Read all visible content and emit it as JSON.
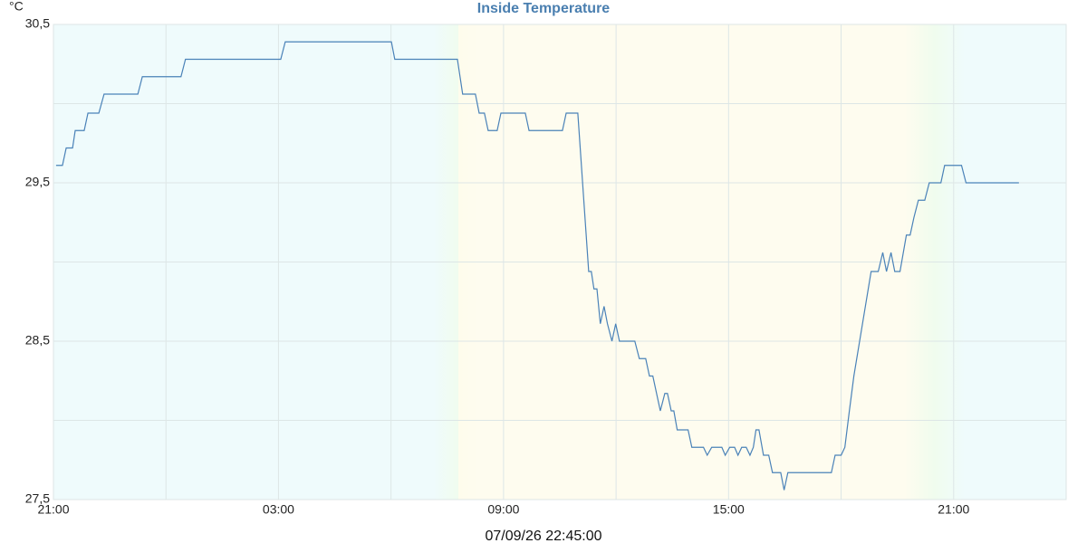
{
  "chart_data": {
    "type": "line",
    "title": "Inside Temperature",
    "y_label": "°C",
    "timestamp": "07/09/26 22:45:00",
    "color": "#4a82b8",
    "grid": true,
    "xlim": [
      0,
      27
    ],
    "xticks": [
      {
        "value": 0,
        "label": "21:00"
      },
      {
        "value": 6,
        "label": "03:00"
      },
      {
        "value": 12,
        "label": "09:00"
      },
      {
        "value": 18,
        "label": "15:00"
      },
      {
        "value": 24,
        "label": "21:00"
      }
    ],
    "x_minor_ticks": [
      3,
      9,
      15,
      21
    ],
    "ylim": [
      27.5,
      30.5
    ],
    "yticks": [
      {
        "value": 27.5,
        "label": "27,5"
      },
      {
        "value": 28.5,
        "label": "28,5"
      },
      {
        "value": 29.5,
        "label": "29,5"
      },
      {
        "value": 30.5,
        "label": "30,5"
      }
    ],
    "y_minor_ticks": [
      28,
      29,
      30
    ],
    "x": [
      0.07,
      0.24,
      0.34,
      0.51,
      0.58,
      0.82,
      0.92,
      1.21,
      1.35,
      2.25,
      2.37,
      3.4,
      3.52,
      6.06,
      6.18,
      9.01,
      9.1,
      10.77,
      10.91,
      11.25,
      11.35,
      11.49,
      11.59,
      11.83,
      11.93,
      12.58,
      12.68,
      13.57,
      13.67,
      13.98,
      14.27,
      14.34,
      14.41,
      14.49,
      14.58,
      14.68,
      14.77,
      14.89,
      14.99,
      15.09,
      15.5,
      15.62,
      15.79,
      15.89,
      15.98,
      16.08,
      16.18,
      16.3,
      16.37,
      16.47,
      16.54,
      16.63,
      16.92,
      17.02,
      17.33,
      17.43,
      17.55,
      17.82,
      17.91,
      18.03,
      18.16,
      18.25,
      18.35,
      18.47,
      18.57,
      18.66,
      18.73,
      18.81,
      18.93,
      19.07,
      19.17,
      19.39,
      19.48,
      19.58,
      20.74,
      20.84,
      21.0,
      21.1,
      21.22,
      21.34,
      21.8,
      21.99,
      22.11,
      22.21,
      22.33,
      22.43,
      22.57,
      22.74,
      22.84,
      22.94,
      23.06,
      23.23,
      23.35,
      23.66,
      23.76,
      24.21,
      24.33,
      25.74
    ],
    "values": [
      29.61,
      29.61,
      29.72,
      29.72,
      29.83,
      29.83,
      29.94,
      29.94,
      30.06,
      30.06,
      30.17,
      30.17,
      30.28,
      30.28,
      30.39,
      30.39,
      30.28,
      30.28,
      30.06,
      30.06,
      29.94,
      29.94,
      29.83,
      29.83,
      29.94,
      29.94,
      29.83,
      29.83,
      29.94,
      29.94,
      28.94,
      28.94,
      28.83,
      28.83,
      28.61,
      28.72,
      28.61,
      28.5,
      28.61,
      28.5,
      28.5,
      28.39,
      28.39,
      28.28,
      28.28,
      28.17,
      28.06,
      28.17,
      28.17,
      28.06,
      28.06,
      27.94,
      27.94,
      27.83,
      27.83,
      27.78,
      27.83,
      27.83,
      27.78,
      27.83,
      27.83,
      27.78,
      27.83,
      27.83,
      27.78,
      27.83,
      27.94,
      27.94,
      27.78,
      27.78,
      27.67,
      27.67,
      27.56,
      27.67,
      27.67,
      27.78,
      27.78,
      27.83,
      28.06,
      28.28,
      28.94,
      28.94,
      29.06,
      28.94,
      29.06,
      28.94,
      28.94,
      29.17,
      29.17,
      29.28,
      29.39,
      29.39,
      29.5,
      29.5,
      29.61,
      29.61,
      29.5,
      29.5
    ]
  }
}
